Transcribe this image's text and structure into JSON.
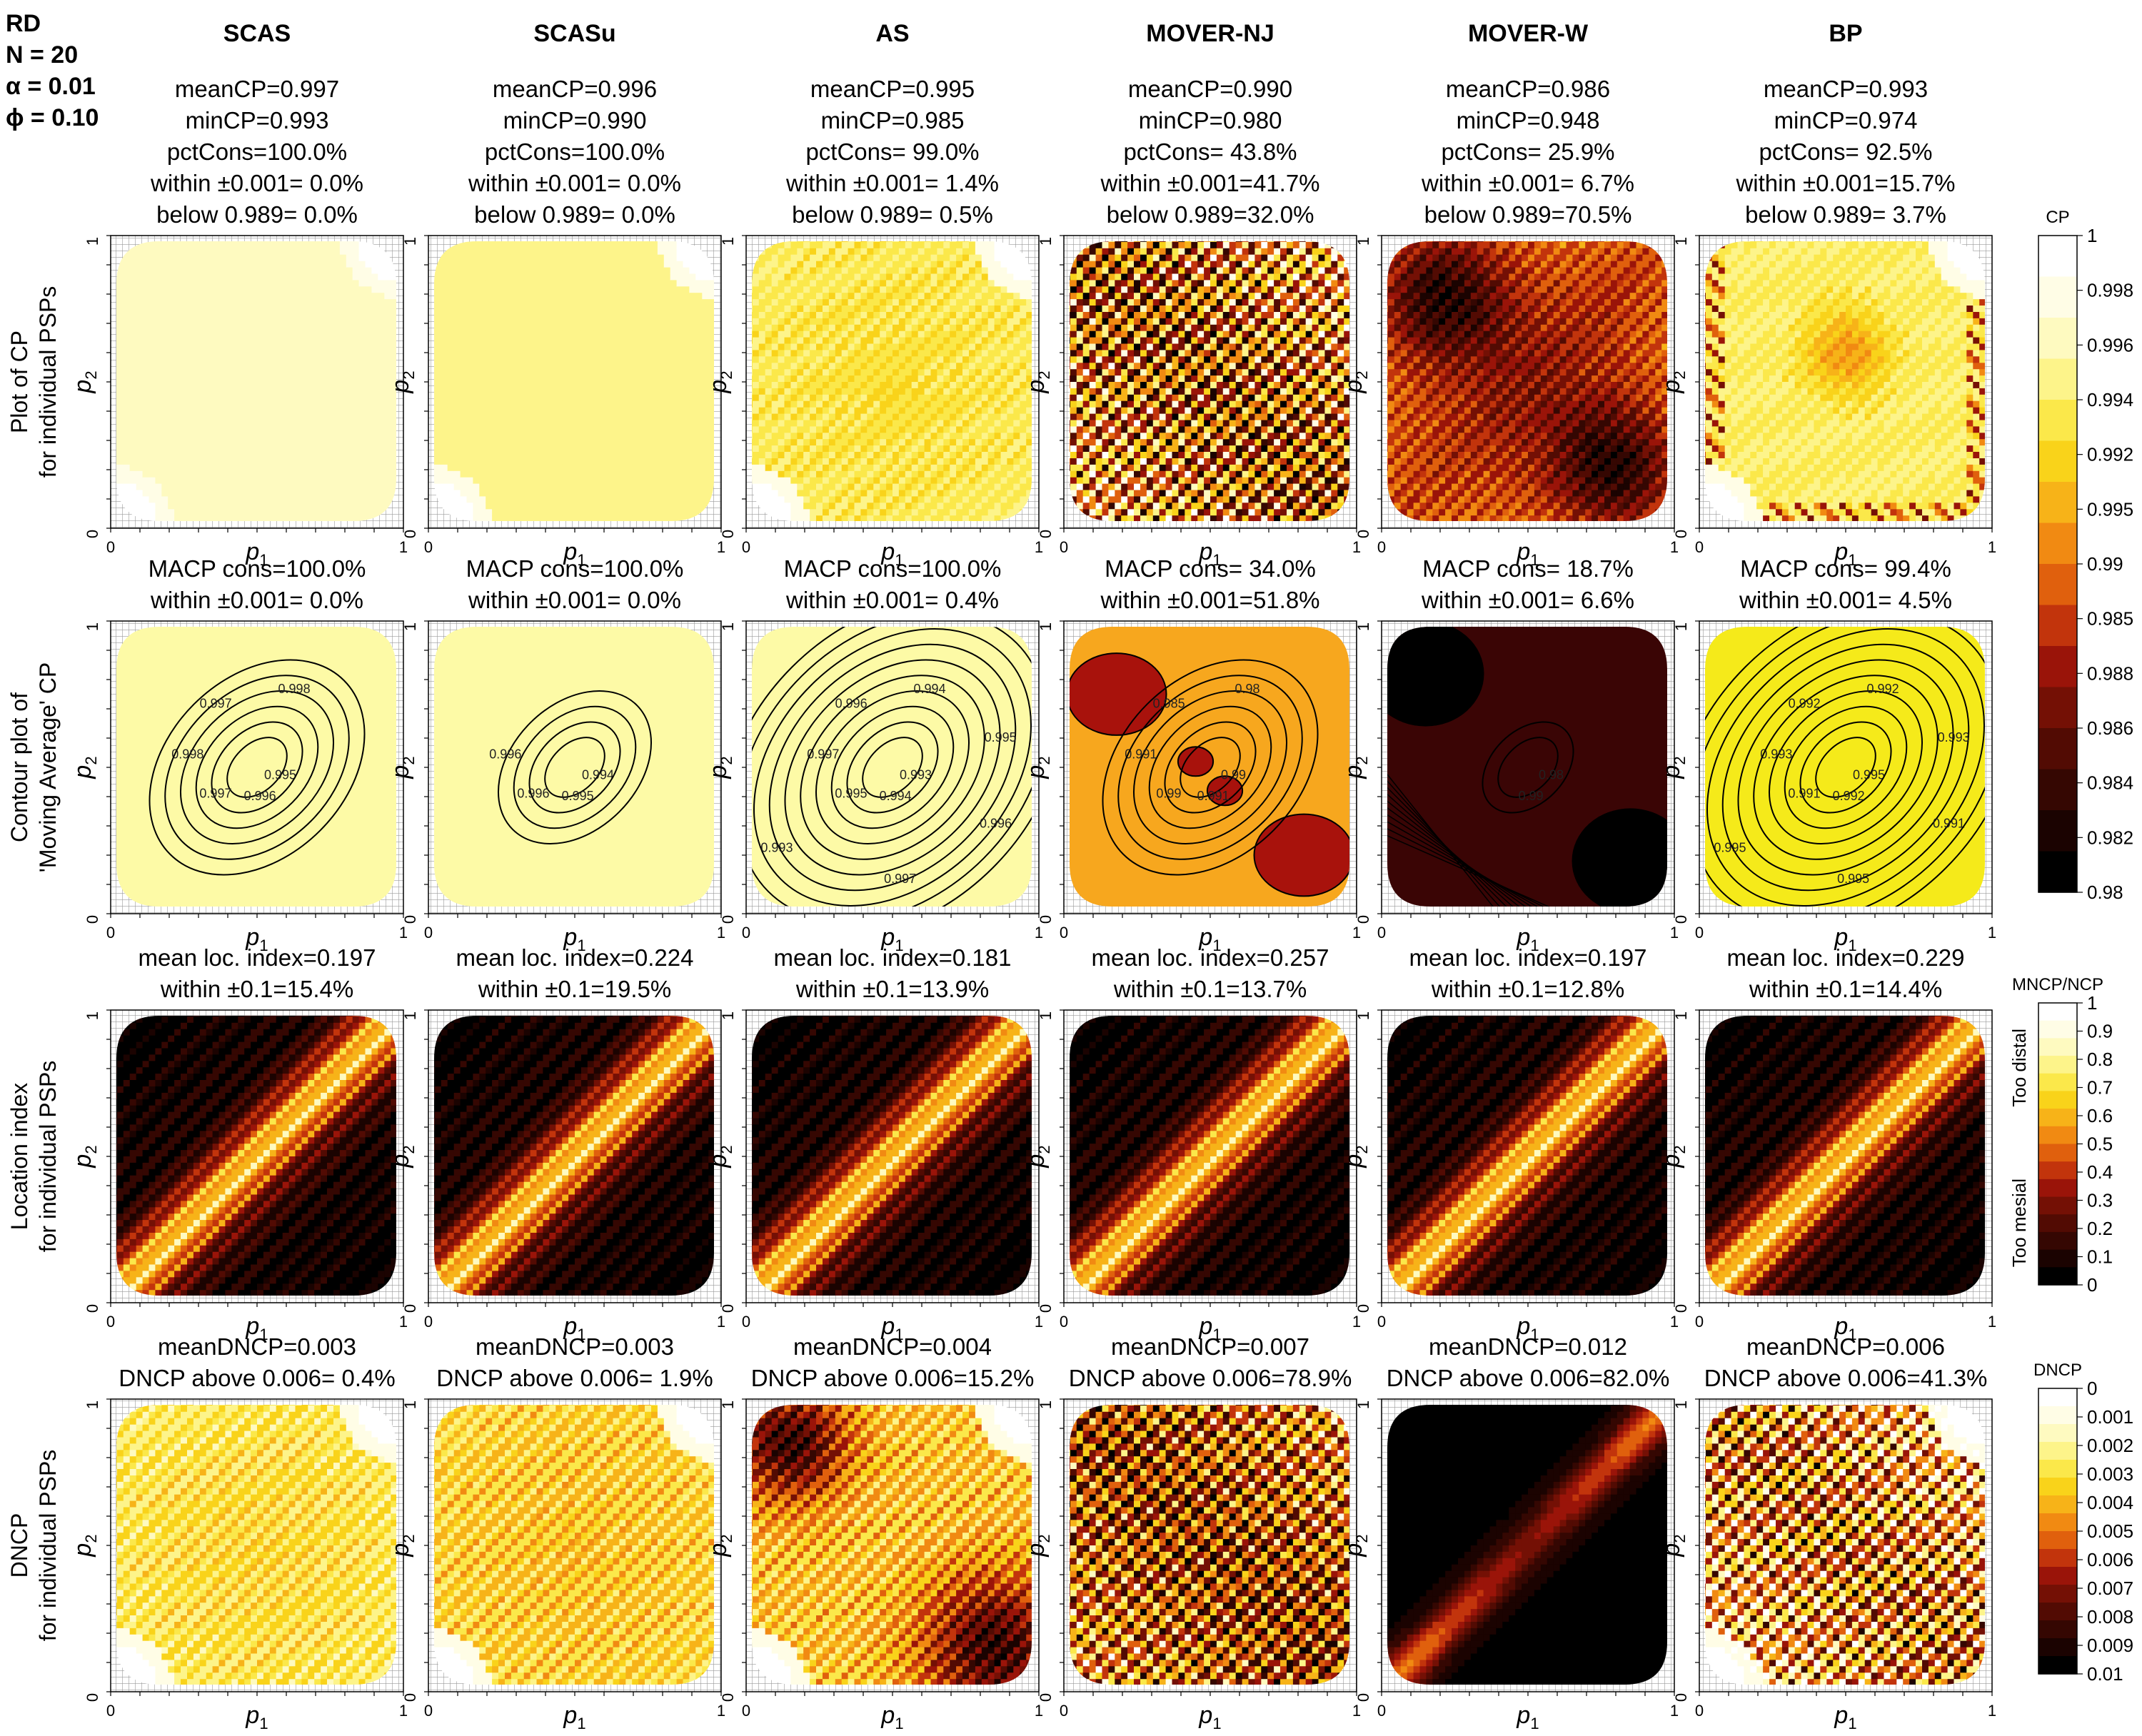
{
  "corner_labels": [
    "RD",
    "N = 20",
    "α = 0.01",
    "ϕ = 0.10"
  ],
  "methods": [
    "SCAS",
    "SCASu",
    "AS",
    "MOVER-NJ",
    "MOVER-W",
    "BP"
  ],
  "axis": {
    "x": "p",
    "x_sub": "1",
    "y": "p",
    "y_sub": "2",
    "tick_min": "0",
    "tick_max": "1"
  },
  "rows": [
    {
      "id": "cp",
      "label_lines": [
        "Plot of CP",
        "for individual PSPs"
      ],
      "panels": [
        {
          "stats": [
            "meanCP=0.997",
            "minCP=0.993",
            "pctCons=100.0%",
            "within ±0.001= 0.0%",
            "below 0.989= 0.0%"
          ],
          "style": {
            "kind": "yellow",
            "base": 0.15,
            "amp": 0.05,
            "stripe": 0.0,
            "corner": "tr-bl"
          }
        },
        {
          "stats": [
            "meanCP=0.996",
            "minCP=0.990",
            "pctCons=100.0%",
            "within ±0.001= 0.0%",
            "below 0.989= 0.0%"
          ],
          "style": {
            "kind": "yellow",
            "base": 0.2,
            "amp": 0.06,
            "stripe": 0.0,
            "corner": "tr-bl"
          }
        },
        {
          "stats": [
            "meanCP=0.995",
            "minCP=0.985",
            "pctCons= 99.0%",
            "within ±0.001= 1.4%",
            "below 0.989= 0.5%"
          ],
          "style": {
            "kind": "yellow",
            "base": 0.25,
            "amp": 0.08,
            "stripe": 0.05,
            "corner": "tr-bl"
          }
        },
        {
          "stats": [
            "meanCP=0.990",
            "minCP=0.980",
            "pctCons= 43.8%",
            "within ±0.001=41.7%",
            "below 0.989=32.0%"
          ],
          "style": {
            "kind": "stripe",
            "base": 0.6,
            "amp": 0.3,
            "stripe": 0.35,
            "corner": "none"
          }
        },
        {
          "stats": [
            "meanCP=0.986",
            "minCP=0.948",
            "pctCons= 25.9%",
            "within ±0.001= 6.7%",
            "below 0.989=70.5%"
          ],
          "style": {
            "kind": "mover-w",
            "base": 0.7,
            "amp": 0.3,
            "stripe": 0.1,
            "corner": "none"
          }
        },
        {
          "stats": [
            "meanCP=0.993",
            "minCP=0.974",
            "pctCons= 92.5%",
            "within ±0.001=15.7%",
            "below 0.989= 3.7%"
          ],
          "style": {
            "kind": "bp",
            "base": 0.25,
            "amp": 0.15,
            "stripe": 0.1,
            "corner": "tr-bl"
          }
        }
      ]
    },
    {
      "id": "macp",
      "label_lines": [
        "Contour plot of",
        "'Moving Average' CP"
      ],
      "panels": [
        {
          "stats": [
            "MACP cons=100.0%",
            "within ±0.001= 0.0%"
          ],
          "contours": [
            "0.995",
            "0.996",
            "0.997",
            "0.998",
            "0.997",
            "0.998"
          ],
          "fill": "#fdfaa6"
        },
        {
          "stats": [
            "MACP cons=100.0%",
            "within ±0.001= 0.0%"
          ],
          "contours": [
            "0.994",
            "0.995",
            "0.996",
            "0.996"
          ],
          "fill": "#fdfaa6"
        },
        {
          "stats": [
            "MACP cons=100.0%",
            "within ±0.001= 0.4%"
          ],
          "contours": [
            "0.993",
            "0.994",
            "0.995",
            "0.997",
            "0.996",
            "0.994",
            "0.995",
            "0.996",
            "0.997",
            "0.993"
          ],
          "fill": "#fdfaa6"
        },
        {
          "stats": [
            "MACP cons= 34.0%",
            "within ±0.001=51.8%"
          ],
          "contours": [
            "0.99",
            "0.991",
            "0.99",
            "0.991",
            "0.985",
            "0.98"
          ],
          "fill": "#f7a71e"
        },
        {
          "stats": [
            "MACP cons= 18.7%",
            "within ±0.001= 6.6%"
          ],
          "contours": [
            "0.98",
            "0.99"
          ],
          "fill": "#3a0505"
        },
        {
          "stats": [
            "MACP cons= 99.4%",
            "within ±0.001= 4.5%"
          ],
          "contours": [
            "0.995",
            "0.992",
            "0.991",
            "0.993",
            "0.992",
            "0.992",
            "0.993",
            "0.991",
            "0.995",
            "0.995"
          ],
          "fill": "#f5ea1a"
        }
      ]
    },
    {
      "id": "loc",
      "label_lines": [
        "Location index",
        "for individual PSPs"
      ],
      "panels": [
        {
          "stats": [
            "mean loc. index=0.197",
            "within ±0.1=15.4%"
          ]
        },
        {
          "stats": [
            "mean loc. index=0.224",
            "within ±0.1=19.5%"
          ]
        },
        {
          "stats": [
            "mean loc. index=0.181",
            "within ±0.1=13.9%"
          ]
        },
        {
          "stats": [
            "mean loc. index=0.257",
            "within ±0.1=13.7%"
          ]
        },
        {
          "stats": [
            "mean loc. index=0.197",
            "within ±0.1=12.8%"
          ]
        },
        {
          "stats": [
            "mean loc. index=0.229",
            "within ±0.1=14.4%"
          ]
        }
      ]
    },
    {
      "id": "dncp",
      "label_lines": [
        "DNCP",
        "for individual PSPs"
      ],
      "panels": [
        {
          "stats": [
            "meanDNCP=0.003",
            "DNCP above 0.006= 0.4%"
          ],
          "style": {
            "kind": "yellow",
            "base": 0.25,
            "amp": 0.1,
            "stripe": 0.1,
            "corner": "tr-bl"
          }
        },
        {
          "stats": [
            "meanDNCP=0.003",
            "DNCP above 0.006= 1.9%"
          ],
          "style": {
            "kind": "yellow",
            "base": 0.3,
            "amp": 0.1,
            "stripe": 0.12,
            "corner": "tr-bl"
          }
        },
        {
          "stats": [
            "meanDNCP=0.004",
            "DNCP above 0.006=15.2%"
          ],
          "style": {
            "kind": "dncp-as",
            "base": 0.35,
            "amp": 0.25,
            "stripe": 0.15,
            "corner": "tr-bl"
          }
        },
        {
          "stats": [
            "meanDNCP=0.007",
            "DNCP above 0.006=78.9%"
          ],
          "style": {
            "kind": "stripe",
            "base": 0.65,
            "amp": 0.3,
            "stripe": 0.3,
            "corner": "none"
          }
        },
        {
          "stats": [
            "meanDNCP=0.012",
            "DNCP above 0.006=82.0%"
          ],
          "style": {
            "kind": "dncp-mw",
            "base": 0.9,
            "amp": 0.2,
            "stripe": 0.05,
            "corner": "none"
          }
        },
        {
          "stats": [
            "meanDNCP=0.006",
            "DNCP above 0.006=41.3%"
          ],
          "style": {
            "kind": "stripe",
            "base": 0.5,
            "amp": 0.3,
            "stripe": 0.35,
            "corner": "tr-bl"
          }
        }
      ]
    }
  ],
  "colorbars": [
    {
      "title": "CP",
      "ticks": [
        "1",
        "0.998",
        "0.996",
        "0.994",
        "0.992",
        "0.995",
        "0.99",
        "0.985",
        "0.988",
        "0.986",
        "0.984",
        "0.982",
        "0.98"
      ]
    },
    {
      "title": "MNCP/NCP",
      "ticks": [
        "1",
        "0.9",
        "0.8",
        "0.7",
        "0.6",
        "0.5",
        "0.4",
        "0.3",
        "0.2",
        "0.1",
        "0"
      ],
      "side_labels": [
        "Too distal",
        "Too mesial"
      ]
    },
    {
      "title": "DNCP",
      "ticks": [
        "0",
        "0.001",
        "0.002",
        "0.003",
        "0.004",
        "0.005",
        "0.006",
        "0.007",
        "0.008",
        "0.009",
        "0.01"
      ]
    }
  ],
  "colors": {
    "scale": [
      "#ffffff",
      "#fffde6",
      "#fefac0",
      "#fdf48a",
      "#fbe84a",
      "#f9d31a",
      "#f7b318",
      "#f18a12",
      "#e0600d",
      "#c2340c",
      "#9a1409",
      "#741005",
      "#520b03",
      "#350702",
      "#1b0301",
      "#000000"
    ],
    "grid": "#9a9a9a"
  },
  "chart_data": {
    "type": "heatmap",
    "layout": "4 rows x 6 columns of panels, x = p1, y = p2, both on [0,1]",
    "x_label": "p1",
    "y_label": "p2",
    "x_range": [
      0,
      1
    ],
    "y_range": [
      0,
      1
    ],
    "columns": [
      "SCAS",
      "SCASu",
      "AS",
      "MOVER-NJ",
      "MOVER-W",
      "BP"
    ],
    "rows": [
      "Plot of CP for individual PSPs",
      "Contour plot of 'Moving Average' CP",
      "Location index for individual PSPs",
      "DNCP for individual PSPs"
    ],
    "meanCP": [
      0.997,
      0.996,
      0.995,
      0.99,
      0.986,
      0.993
    ],
    "minCP": [
      0.993,
      0.99,
      0.985,
      0.98,
      0.948,
      0.974
    ],
    "pctCons": [
      100.0,
      100.0,
      99.0,
      43.8,
      25.9,
      92.5
    ],
    "within_0.001_CP": [
      0.0,
      0.0,
      1.4,
      41.7,
      6.7,
      15.7
    ],
    "below_0.989": [
      0.0,
      0.0,
      0.5,
      32.0,
      70.5,
      3.7
    ],
    "MACP_cons": [
      100.0,
      100.0,
      100.0,
      34.0,
      18.7,
      99.4
    ],
    "within_0.001_MACP": [
      0.0,
      0.0,
      0.4,
      51.8,
      6.6,
      4.5
    ],
    "mean_loc_index": [
      0.197,
      0.224,
      0.181,
      0.257,
      0.197,
      0.229
    ],
    "within_0.1_loc": [
      15.4,
      19.5,
      13.9,
      13.7,
      12.8,
      14.4
    ],
    "meanDNCP": [
      0.003,
      0.003,
      0.004,
      0.007,
      0.012,
      0.006
    ],
    "DNCP_above_0.006": [
      0.4,
      1.9,
      15.2,
      78.9,
      82.0,
      41.3
    ],
    "colorbar_CP": {
      "min": 0.98,
      "max": 1
    },
    "colorbar_loc": {
      "min": 0,
      "max": 1
    },
    "colorbar_DNCP": {
      "min": 0,
      "max": 0.01
    }
  }
}
